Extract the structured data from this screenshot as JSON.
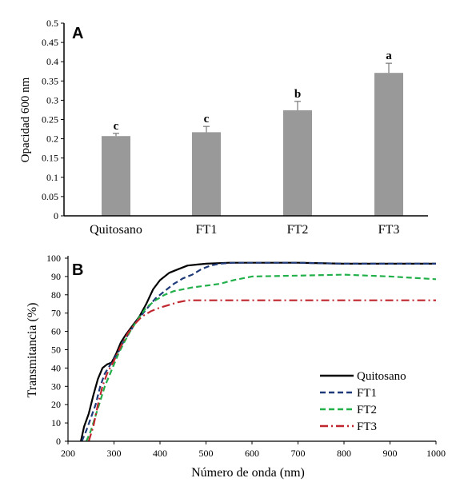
{
  "chart_data": [
    {
      "panel_label": "A",
      "type": "bar",
      "ylabel": "Opacidad 600 nm",
      "ylim": [
        0,
        0.5
      ],
      "yticks": [
        "0",
        "0.05",
        "0.1",
        "0.15",
        "0.2",
        "0.25",
        "0.3",
        "0.35",
        "0.4",
        "0.45",
        "0.5"
      ],
      "categories": [
        "Quitosano",
        "FT1",
        "FT2",
        "FT3"
      ],
      "values": [
        0.207,
        0.217,
        0.274,
        0.371
      ],
      "errors": [
        0.007,
        0.015,
        0.023,
        0.025
      ],
      "letters": [
        "c",
        "c",
        "b",
        "a"
      ],
      "bar_color": "#999999",
      "grid": false
    },
    {
      "panel_label": "B",
      "type": "line",
      "xlabel": "Número de onda (nm)",
      "ylabel": "Transmitancia (%)",
      "xlim": [
        200,
        1000
      ],
      "ylim": [
        0,
        100
      ],
      "xticks": [
        "200",
        "300",
        "400",
        "500",
        "600",
        "700",
        "800",
        "900",
        "1000"
      ],
      "yticks": [
        "0",
        "10",
        "20",
        "30",
        "40",
        "50",
        "60",
        "70",
        "80",
        "90",
        "100"
      ],
      "legend_position": "lower-right",
      "grid": false,
      "series": [
        {
          "name": "Quitosano",
          "color": "#000000",
          "dash": "solid",
          "points": [
            [
              228,
              0
            ],
            [
              235,
              8
            ],
            [
              245,
              15
            ],
            [
              255,
              25
            ],
            [
              265,
              34
            ],
            [
              275,
              40
            ],
            [
              285,
              42
            ],
            [
              295,
              43
            ],
            [
              305,
              48
            ],
            [
              315,
              54
            ],
            [
              325,
              58
            ],
            [
              340,
              63
            ],
            [
              355,
              68
            ],
            [
              370,
              75
            ],
            [
              385,
              83
            ],
            [
              400,
              88
            ],
            [
              420,
              92
            ],
            [
              440,
              94
            ],
            [
              460,
              96
            ],
            [
              480,
              96.5
            ],
            [
              500,
              97
            ],
            [
              550,
              97.5
            ],
            [
              600,
              97.5
            ],
            [
              700,
              97.5
            ],
            [
              800,
              97
            ],
            [
              900,
              97
            ],
            [
              1000,
              97
            ]
          ]
        },
        {
          "name": "FT1",
          "color": "#1f3a78",
          "dash": "dashed",
          "points": [
            [
              230,
              0
            ],
            [
              240,
              6
            ],
            [
              250,
              13
            ],
            [
              260,
              20
            ],
            [
              270,
              30
            ],
            [
              280,
              37
            ],
            [
              290,
              41
            ],
            [
              300,
              45
            ],
            [
              310,
              49
            ],
            [
              320,
              54
            ],
            [
              335,
              60
            ],
            [
              350,
              66
            ],
            [
              370,
              72
            ],
            [
              390,
              78
            ],
            [
              410,
              82
            ],
            [
              430,
              86
            ],
            [
              450,
              89
            ],
            [
              470,
              91
            ],
            [
              490,
              94
            ],
            [
              510,
              96
            ],
            [
              530,
              97
            ],
            [
              560,
              97.5
            ],
            [
              600,
              97.5
            ],
            [
              700,
              97.5
            ],
            [
              800,
              97
            ],
            [
              900,
              97
            ],
            [
              1000,
              97
            ]
          ]
        },
        {
          "name": "FT2",
          "color": "#22b04a",
          "dash": "dashed",
          "points": [
            [
              240,
              0
            ],
            [
              250,
              6
            ],
            [
              260,
              14
            ],
            [
              270,
              22
            ],
            [
              280,
              30
            ],
            [
              290,
              36
            ],
            [
              300,
              42
            ],
            [
              310,
              48
            ],
            [
              320,
              53
            ],
            [
              335,
              60
            ],
            [
              350,
              66
            ],
            [
              370,
              73
            ],
            [
              390,
              77
            ],
            [
              410,
              80
            ],
            [
              430,
              82
            ],
            [
              450,
              83
            ],
            [
              470,
              84
            ],
            [
              500,
              85
            ],
            [
              530,
              86
            ],
            [
              560,
              88
            ],
            [
              600,
              90
            ],
            [
              700,
              90.5
            ],
            [
              800,
              91
            ],
            [
              900,
              90
            ],
            [
              1000,
              88.5
            ]
          ]
        },
        {
          "name": "FT3",
          "color": "#c0262d",
          "dash": "dashdot",
          "points": [
            [
              245,
              0
            ],
            [
              255,
              8
            ],
            [
              265,
              20
            ],
            [
              275,
              30
            ],
            [
              285,
              37
            ],
            [
              300,
              44
            ],
            [
              315,
              52
            ],
            [
              330,
              59
            ],
            [
              345,
              64
            ],
            [
              360,
              68
            ],
            [
              380,
              71
            ],
            [
              400,
              73
            ],
            [
              420,
              74.5
            ],
            [
              440,
              76
            ],
            [
              460,
              77
            ],
            [
              500,
              77
            ],
            [
              600,
              77
            ],
            [
              700,
              77
            ],
            [
              800,
              77
            ],
            [
              900,
              77
            ],
            [
              1000,
              77
            ]
          ]
        }
      ]
    }
  ]
}
